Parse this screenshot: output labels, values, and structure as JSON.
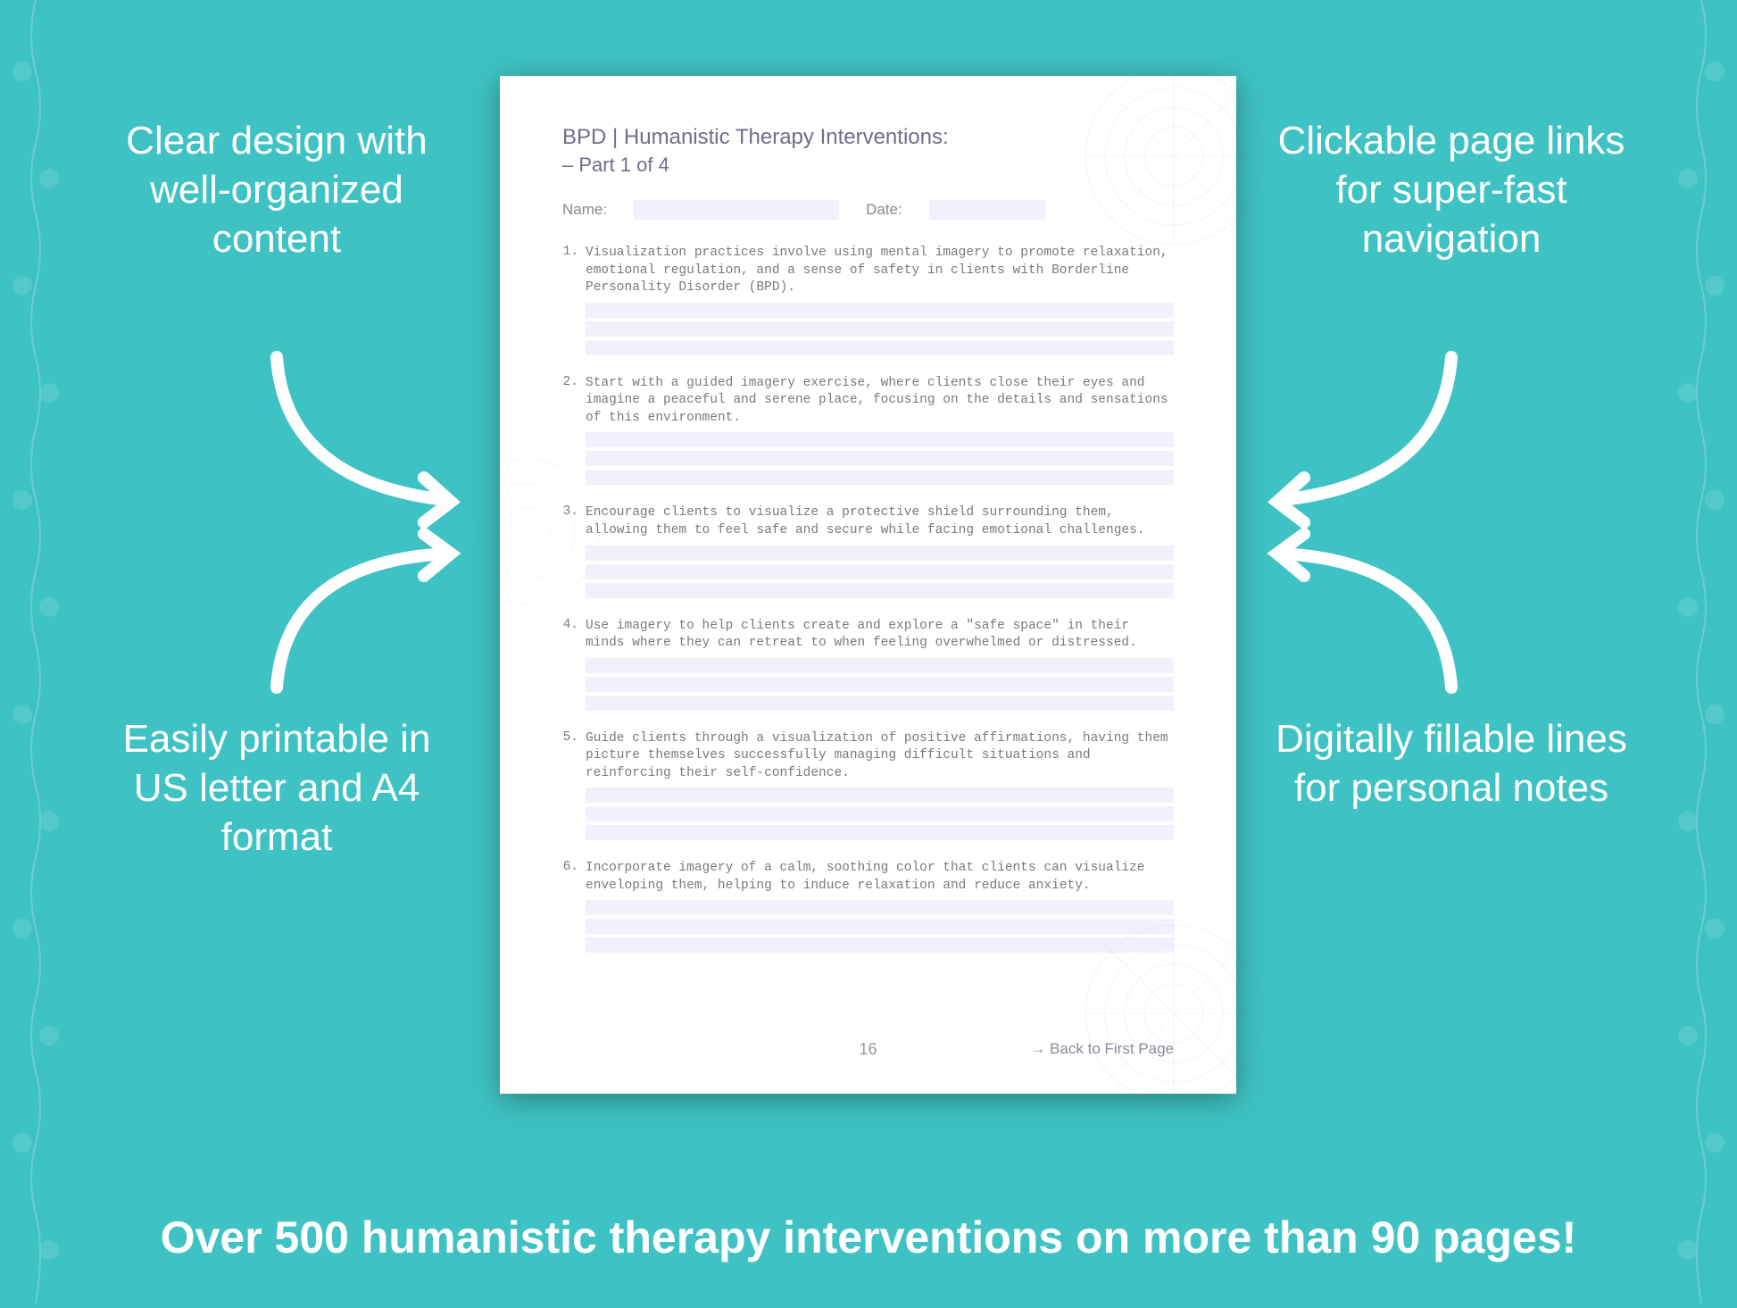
{
  "colors": {
    "background": "#3fc2c4",
    "page_bg": "#ffffff",
    "fill_line": "#f4f0fb",
    "text_muted": "#7a7a7a",
    "heading": "#6f6d8c",
    "callout_text": "#ffffff",
    "arrow": "#ffffff"
  },
  "page": {
    "title": "BPD | Humanistic Therapy Interventions:",
    "subtitle": "– Part 1 of 4",
    "name_label": "Name:",
    "date_label": "Date:",
    "page_number": "16",
    "back_link": "→ Back to First Page",
    "items": [
      {
        "num": "1.",
        "text": "Visualization practices involve using mental imagery to promote relaxation, emotional regulation, and a sense of safety in clients with Borderline Personality Disorder (BPD)."
      },
      {
        "num": "2.",
        "text": "Start with a guided imagery exercise, where clients close their eyes and imagine a peaceful and serene place, focusing on the details and sensations of this environment."
      },
      {
        "num": "3.",
        "text": "Encourage clients to visualize a protective shield surrounding them, allowing them to feel safe and secure while facing emotional challenges."
      },
      {
        "num": "4.",
        "text": "Use imagery to help clients create and explore a \"safe space\" in their minds where they can retreat to when feeling overwhelmed or distressed."
      },
      {
        "num": "5.",
        "text": "Guide clients through a visualization of positive affirmations, having them picture themselves successfully managing difficult situations and reinforcing their self-confidence."
      },
      {
        "num": "6.",
        "text": "Incorporate imagery of a calm, soothing color that clients can visualize enveloping them, helping to induce relaxation and reduce anxiety."
      }
    ]
  },
  "callouts": {
    "top_left": "Clear design with well-organized content",
    "top_right": "Clickable page links for super-fast navigation",
    "bottom_left": "Easily printable in US letter and A4 format",
    "bottom_right": "Digitally fillable lines for personal notes"
  },
  "banner": "Over 500 humanistic therapy interventions on more than 90 pages!"
}
